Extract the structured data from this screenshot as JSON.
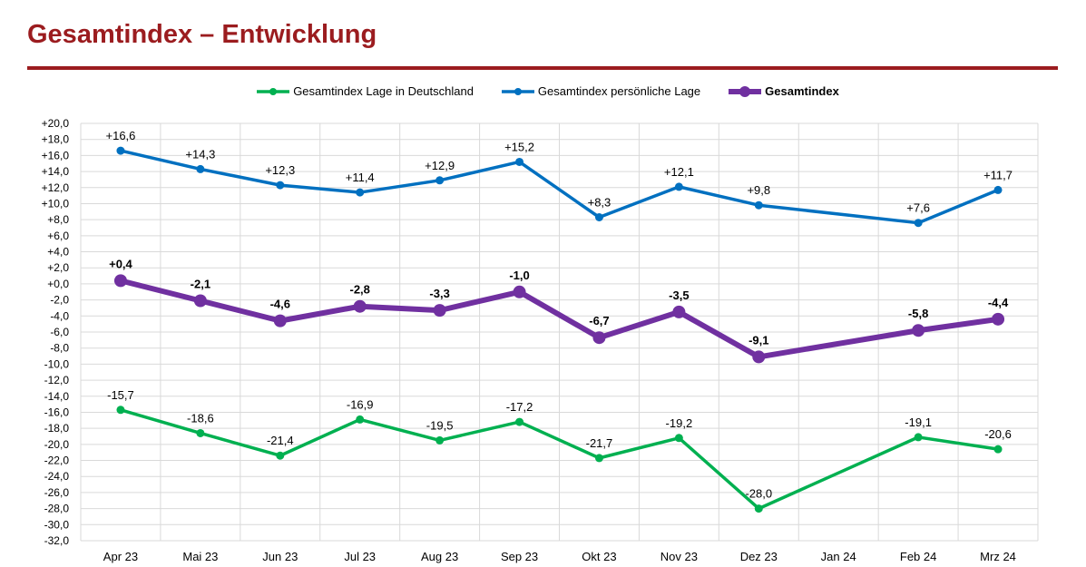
{
  "title": "Gesamtindex – Entwicklung",
  "colors": {
    "title": "#9b1c1f",
    "green": "#00b050",
    "blue": "#0070c0",
    "purple": "#7030a0",
    "grid": "#d9d9d9"
  },
  "chart_data": {
    "type": "line",
    "title": "",
    "xlabel": "",
    "ylabel": "",
    "ylim": [
      -32,
      20
    ],
    "ytick_step": 2,
    "grid": true,
    "legend": "top",
    "categories": [
      "Apr 23",
      "Mai 23",
      "Jun 23",
      "Jul 23",
      "Aug 23",
      "Sep 23",
      "Okt 23",
      "Nov 23",
      "Dez 23",
      "Jan 24",
      "Feb 24",
      "Mrz 24"
    ],
    "yticks": [
      "+20,0",
      "+18,0",
      "+16,0",
      "+14,0",
      "+12,0",
      "+10,0",
      "+8,0",
      "+6,0",
      "+4,0",
      "+2,0",
      "+0,0",
      "-2,0",
      "-4,0",
      "-6,0",
      "-8,0",
      "-10,0",
      "-12,0",
      "-14,0",
      "-16,0",
      "-18,0",
      "-20,0",
      "-22,0",
      "-24,0",
      "-26,0",
      "-28,0",
      "-30,0",
      "-32,0"
    ],
    "series": [
      {
        "name": "Gesamtindex Lage in Deutschland",
        "color": "#00b050",
        "bold": false,
        "values": [
          -15.7,
          -18.6,
          -21.4,
          -16.9,
          -19.5,
          -17.2,
          -21.7,
          -19.2,
          -28.0,
          null,
          -19.1,
          -20.6
        ],
        "labels": [
          "-15,7",
          "-18,6",
          "-21,4",
          "-16,9",
          "-19,5",
          "-17,2",
          "-21,7",
          "-19,2",
          "-28,0",
          "",
          "-19,1",
          "-20,6"
        ]
      },
      {
        "name": "Gesamtindex persönliche Lage",
        "color": "#0070c0",
        "bold": false,
        "values": [
          16.6,
          14.3,
          12.3,
          11.4,
          12.9,
          15.2,
          8.3,
          12.1,
          9.8,
          null,
          7.6,
          11.7
        ],
        "labels": [
          "+16,6",
          "+14,3",
          "+12,3",
          "+11,4",
          "+12,9",
          "+15,2",
          "+8,3",
          "+12,1",
          "+9,8",
          "",
          "+7,6",
          "+11,7"
        ]
      },
      {
        "name": "Gesamtindex",
        "color": "#7030a0",
        "bold": true,
        "values": [
          0.4,
          -2.1,
          -4.6,
          -2.8,
          -3.3,
          -1.0,
          -6.7,
          -3.5,
          -9.1,
          null,
          -5.8,
          -4.4
        ],
        "labels": [
          "+0,4",
          "-2,1",
          "-4,6",
          "-2,8",
          "-3,3",
          "-1,0",
          "-6,7",
          "-3,5",
          "-9,1",
          "",
          "-5,8",
          "-4,4"
        ]
      }
    ]
  }
}
